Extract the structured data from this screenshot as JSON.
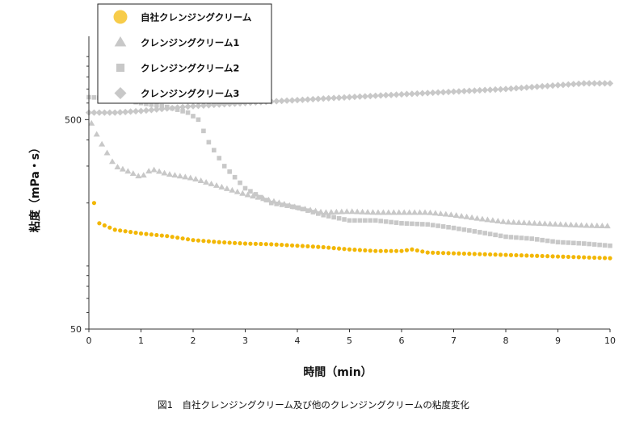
{
  "chart_data": {
    "type": "scatter",
    "caption": "図1　自社クレンジングクリーム及び他のクレンジングクリームの粘度変化",
    "xlabel": "時間（min）",
    "ylabel": "粘度（mPa・s）",
    "x_ticks": [
      "0",
      "1",
      "2",
      "3",
      "4",
      "5",
      "6",
      "7",
      "8",
      "9",
      "10"
    ],
    "y_ticks": [
      "50",
      "500"
    ],
    "xlim": [
      0,
      10
    ],
    "ylim": [
      50,
      1250
    ],
    "y_scale": "log",
    "legend_position": "top-left",
    "series": [
      {
        "name": "自社クレンジングクリーム",
        "marker": "circle",
        "color": "#F2B705",
        "legend_color": "#F7CC4A",
        "x": [
          0.1,
          0.2,
          0.5,
          1,
          1.5,
          2,
          2.5,
          3,
          3.5,
          4,
          4.5,
          5,
          5.5,
          6,
          6.2,
          6.5,
          7,
          7.5,
          8,
          8.5,
          9,
          9.5,
          10
        ],
        "y": [
          200,
          160,
          149,
          143,
          139,
          133,
          130,
          128,
          127,
          125,
          123,
          120,
          118,
          118,
          120,
          116,
          115,
          114,
          113,
          112,
          111,
          110,
          109
        ]
      },
      {
        "name": "クレンジングクリーム1",
        "marker": "triangle",
        "color": "#C8C8C8",
        "x": [
          0.05,
          0.2,
          0.5,
          0.8,
          1,
          1.2,
          1.5,
          2,
          2.5,
          3,
          3.5,
          4,
          4.5,
          5,
          5.5,
          6,
          6.5,
          7,
          7.5,
          8,
          8.5,
          9,
          9.5,
          10
        ],
        "y": [
          480,
          400,
          300,
          280,
          265,
          290,
          275,
          262,
          240,
          220,
          205,
          190,
          180,
          182,
          180,
          180,
          180,
          175,
          168,
          162,
          160,
          158,
          156,
          155
        ]
      },
      {
        "name": "クレンジングクリーム2",
        "marker": "square",
        "color": "#C8C8C8",
        "x": [
          0,
          0.5,
          1,
          1.5,
          1.9,
          2.1,
          2.3,
          2.6,
          3,
          3.2,
          3.5,
          4,
          4.5,
          5,
          5.5,
          6,
          6.5,
          7,
          7.5,
          8,
          8.5,
          9,
          9.5,
          10
        ],
        "y": [
          640,
          630,
          600,
          575,
          540,
          500,
          390,
          300,
          235,
          220,
          200,
          190,
          175,
          165,
          165,
          160,
          158,
          152,
          145,
          138,
          135,
          130,
          128,
          125
        ]
      },
      {
        "name": "クレンジングクリーム3",
        "marker": "diamond",
        "color": "#C8C8C8",
        "x": [
          0,
          0.5,
          1,
          1.5,
          2,
          2.5,
          3,
          3.5,
          4,
          4.5,
          5,
          5.5,
          6,
          6.5,
          7,
          7.5,
          8,
          8.5,
          9,
          9.5,
          10
        ],
        "y": [
          540,
          540,
          550,
          565,
          580,
          590,
          600,
          610,
          620,
          630,
          640,
          650,
          660,
          670,
          680,
          690,
          700,
          715,
          730,
          745,
          745
        ]
      }
    ]
  }
}
